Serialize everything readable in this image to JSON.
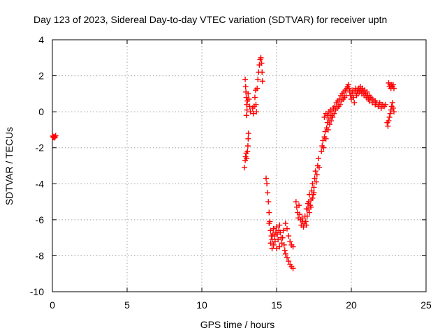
{
  "chart_data": {
    "type": "scatter",
    "title": "Day 123 of 2023, Sidereal Day-to-day VTEC variation (SDTVAR) for receiver uptn",
    "xlabel": "GPS time / hours",
    "ylabel": "SDTVAR / TECUs",
    "xlim": [
      0,
      25
    ],
    "ylim": [
      -10,
      4
    ],
    "x_ticks": [
      0,
      5,
      10,
      15,
      20,
      25
    ],
    "y_ticks": [
      -10,
      -8,
      -6,
      -4,
      -2,
      0,
      2,
      4
    ],
    "x_tick_labels": [
      "0",
      "5",
      "10",
      "15",
      "20",
      "25"
    ],
    "y_tick_labels": [
      "-10",
      "-8",
      "-6",
      "-4",
      "-2",
      "0",
      "2",
      "4"
    ],
    "grid": true,
    "marker": "plus",
    "color": "#ff0000",
    "series": [
      {
        "points": [
          [
            0.02,
            -1.35
          ],
          [
            0.06,
            -1.42
          ],
          [
            0.1,
            -1.38
          ],
          [
            0.14,
            -1.45
          ],
          [
            0.18,
            -1.4
          ],
          [
            0.22,
            -1.33
          ],
          [
            12.85,
            -3.1
          ],
          [
            12.9,
            -2.7
          ],
          [
            12.93,
            -2.5
          ],
          [
            12.97,
            -2.3
          ],
          [
            13.0,
            -2.6
          ],
          [
            13.05,
            -2.2
          ],
          [
            13.08,
            -1.9
          ],
          [
            13.1,
            -1.5
          ],
          [
            13.12,
            -1.2
          ],
          [
            12.9,
            1.8
          ],
          [
            12.93,
            1.4
          ],
          [
            12.95,
            1.1
          ],
          [
            12.97,
            0.8
          ],
          [
            13.0,
            0.4
          ],
          [
            13.02,
            0.1
          ],
          [
            12.98,
            -0.2
          ],
          [
            13.05,
            0.6
          ],
          [
            13.1,
            1.0
          ],
          [
            13.15,
            0.7
          ],
          [
            13.2,
            0.3
          ],
          [
            13.25,
            0.0
          ],
          [
            13.4,
            0.2
          ],
          [
            13.45,
            -0.1
          ],
          [
            13.5,
            0.3
          ],
          [
            13.55,
            0.8
          ],
          [
            13.6,
            1.2
          ],
          [
            13.62,
            0.4
          ],
          [
            13.65,
            0.0
          ],
          [
            13.7,
            1.3
          ],
          [
            13.75,
            1.8
          ],
          [
            13.8,
            2.2
          ],
          [
            13.85,
            2.6
          ],
          [
            13.9,
            2.9
          ],
          [
            13.95,
            3.0
          ],
          [
            14.0,
            2.7
          ],
          [
            14.03,
            2.2
          ],
          [
            14.05,
            1.7
          ],
          [
            14.3,
            -3.7
          ],
          [
            14.35,
            -4.0
          ],
          [
            14.4,
            -4.5
          ],
          [
            14.45,
            -5.0
          ],
          [
            14.5,
            -5.6
          ],
          [
            14.55,
            -6.1
          ],
          [
            14.6,
            -6.6
          ],
          [
            14.65,
            -6.9
          ],
          [
            14.7,
            -7.1
          ],
          [
            14.75,
            -6.8
          ],
          [
            14.8,
            -6.5
          ],
          [
            14.85,
            -6.9
          ],
          [
            14.9,
            -7.2
          ],
          [
            14.95,
            -6.7
          ],
          [
            15.0,
            -6.4
          ],
          [
            15.05,
            -6.8
          ],
          [
            15.1,
            -7.1
          ],
          [
            15.15,
            -6.6
          ],
          [
            15.2,
            -6.3
          ],
          [
            15.25,
            -6.7
          ],
          [
            15.3,
            -7.0
          ],
          [
            15.35,
            -7.3
          ],
          [
            15.4,
            -7.0
          ],
          [
            15.45,
            -6.6
          ],
          [
            14.5,
            -6.2
          ],
          [
            14.6,
            -7.3
          ],
          [
            14.7,
            -7.6
          ],
          [
            14.8,
            -7.4
          ],
          [
            15.0,
            -7.6
          ],
          [
            15.2,
            -7.5
          ],
          [
            15.5,
            -7.4
          ],
          [
            15.55,
            -7.7
          ],
          [
            15.6,
            -7.9
          ],
          [
            15.7,
            -8.1
          ],
          [
            15.8,
            -8.3
          ],
          [
            15.9,
            -8.5
          ],
          [
            16.0,
            -8.6
          ],
          [
            16.1,
            -8.7
          ],
          [
            15.6,
            -6.2
          ],
          [
            15.7,
            -6.5
          ],
          [
            15.8,
            -6.9
          ],
          [
            15.9,
            -7.2
          ],
          [
            16.0,
            -7.4
          ],
          [
            16.1,
            -7.5
          ],
          [
            16.3,
            -5.0
          ],
          [
            16.35,
            -5.3
          ],
          [
            16.4,
            -5.6
          ],
          [
            16.45,
            -5.9
          ],
          [
            16.5,
            -5.2
          ],
          [
            16.55,
            -5.7
          ],
          [
            16.6,
            -6.0
          ],
          [
            16.65,
            -6.3
          ],
          [
            16.7,
            -5.9
          ],
          [
            16.75,
            -6.1
          ],
          [
            16.8,
            -6.4
          ],
          [
            16.85,
            -6.2
          ],
          [
            16.9,
            -5.8
          ],
          [
            16.95,
            -6.1
          ],
          [
            17.0,
            -6.3
          ],
          [
            17.05,
            -5.8
          ],
          [
            17.1,
            -5.4
          ],
          [
            17.15,
            -5.0
          ],
          [
            17.2,
            -4.6
          ],
          [
            17.25,
            -5.2
          ],
          [
            17.3,
            -4.9
          ],
          [
            17.35,
            -4.4
          ],
          [
            17.4,
            -4.0
          ],
          [
            17.45,
            -4.6
          ],
          [
            17.5,
            -4.2
          ],
          [
            17.55,
            -3.7
          ],
          [
            17.6,
            -3.3
          ],
          [
            17.65,
            -3.9
          ],
          [
            17.7,
            -3.5
          ],
          [
            17.75,
            -3.0
          ],
          [
            17.8,
            -2.6
          ],
          [
            17.85,
            -3.1
          ],
          [
            17.0,
            -5.4
          ],
          [
            17.1,
            -5.1
          ],
          [
            17.2,
            -5.6
          ],
          [
            17.3,
            -5.3
          ],
          [
            17.4,
            -4.8
          ],
          [
            17.5,
            -4.5
          ],
          [
            18.0,
            -2.2
          ],
          [
            18.05,
            -1.9
          ],
          [
            18.1,
            -1.6
          ],
          [
            18.15,
            -2.0
          ],
          [
            18.2,
            -1.4
          ],
          [
            18.25,
            -1.1
          ],
          [
            18.3,
            -1.5
          ],
          [
            18.35,
            -0.9
          ],
          [
            18.4,
            -0.6
          ],
          [
            18.45,
            -1.0
          ],
          [
            18.5,
            -0.4
          ],
          [
            18.55,
            -0.7
          ],
          [
            18.6,
            -0.2
          ],
          [
            18.65,
            -0.5
          ],
          [
            18.7,
            0.0
          ],
          [
            18.75,
            -0.3
          ],
          [
            18.8,
            0.2
          ],
          [
            18.85,
            -0.1
          ],
          [
            18.9,
            0.3
          ],
          [
            18.95,
            0.1
          ],
          [
            19.0,
            0.5
          ],
          [
            19.05,
            0.2
          ],
          [
            19.1,
            0.6
          ],
          [
            19.15,
            0.3
          ],
          [
            19.2,
            0.7
          ],
          [
            19.25,
            0.4
          ],
          [
            19.3,
            0.9
          ],
          [
            19.35,
            0.6
          ],
          [
            19.4,
            1.0
          ],
          [
            19.45,
            0.7
          ],
          [
            19.5,
            1.1
          ],
          [
            19.55,
            0.8
          ],
          [
            19.6,
            1.2
          ],
          [
            19.65,
            0.9
          ],
          [
            19.7,
            1.3
          ],
          [
            19.75,
            1.4
          ],
          [
            19.8,
            1.5
          ],
          [
            19.85,
            1.3
          ],
          [
            19.9,
            1.1
          ],
          [
            19.95,
            0.9
          ],
          [
            20.0,
            0.7
          ],
          [
            18.2,
            -0.3
          ],
          [
            18.3,
            -0.1
          ],
          [
            18.4,
            -0.2
          ],
          [
            18.5,
            0.0
          ],
          [
            18.6,
            0.1
          ],
          [
            18.7,
            -0.2
          ],
          [
            20.05,
            1.0
          ],
          [
            20.1,
            1.2
          ],
          [
            20.15,
            0.8
          ],
          [
            20.2,
            0.5
          ],
          [
            20.25,
            1.1
          ],
          [
            20.3,
            1.3
          ],
          [
            20.35,
            0.9
          ],
          [
            20.4,
            1.2
          ],
          [
            20.45,
            1.0
          ],
          [
            20.5,
            1.3
          ],
          [
            20.55,
            1.1
          ],
          [
            20.6,
            1.4
          ],
          [
            20.65,
            1.2
          ],
          [
            20.7,
            1.0
          ],
          [
            20.75,
            1.3
          ],
          [
            20.8,
            1.1
          ],
          [
            20.85,
            0.9
          ],
          [
            20.9,
            1.2
          ],
          [
            20.95,
            1.0
          ],
          [
            21.0,
            0.8
          ],
          [
            21.05,
            1.1
          ],
          [
            21.1,
            0.9
          ],
          [
            21.15,
            0.7
          ],
          [
            21.2,
            0.9
          ],
          [
            21.3,
            0.8
          ],
          [
            21.4,
            0.7
          ],
          [
            21.5,
            0.6
          ],
          [
            21.6,
            0.6
          ],
          [
            21.7,
            0.5
          ],
          [
            21.8,
            0.4
          ],
          [
            21.9,
            0.5
          ],
          [
            22.0,
            0.4
          ],
          [
            22.1,
            0.4
          ],
          [
            22.2,
            0.3
          ],
          [
            22.3,
            0.4
          ],
          [
            21.2,
            0.6
          ],
          [
            21.4,
            0.5
          ],
          [
            21.6,
            0.4
          ],
          [
            21.8,
            0.3
          ],
          [
            22.0,
            0.2
          ],
          [
            22.4,
            -0.6
          ],
          [
            22.45,
            -0.8
          ],
          [
            22.5,
            -0.5
          ],
          [
            22.55,
            -0.3
          ],
          [
            22.6,
            -0.1
          ],
          [
            22.65,
            0.1
          ],
          [
            22.7,
            0.3
          ],
          [
            22.75,
            0.5
          ],
          [
            22.8,
            0.2
          ],
          [
            22.85,
            0.0
          ],
          [
            22.5,
            1.6
          ],
          [
            22.55,
            1.4
          ],
          [
            22.6,
            1.5
          ],
          [
            22.65,
            1.3
          ],
          [
            22.7,
            1.5
          ],
          [
            22.75,
            1.4
          ],
          [
            22.8,
            1.5
          ],
          [
            22.85,
            1.3
          ]
        ]
      }
    ]
  }
}
